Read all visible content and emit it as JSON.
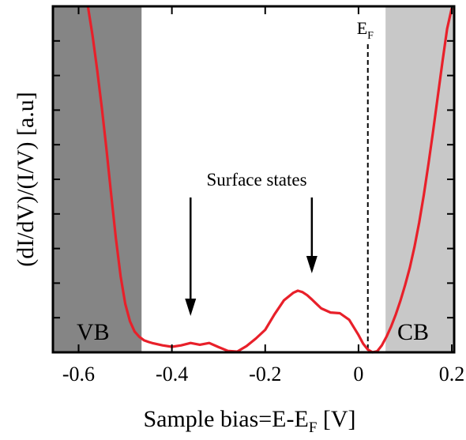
{
  "chart_data": {
    "type": "line",
    "title": "",
    "xlabel_main": "Sample bias=E-E",
    "xlabel_sub": "F",
    "xlabel_unit": " [V]",
    "ylabel": "(dI/dV)/(I/V) [a.u]",
    "xlim": [
      -0.655,
      0.205
    ],
    "ylim": [
      0,
      1
    ],
    "x_ticks": [
      {
        "value": -0.6,
        "label": "-0.6"
      },
      {
        "value": -0.4,
        "label": "-0.4"
      },
      {
        "value": -0.2,
        "label": "-0.2"
      },
      {
        "value": 0.0,
        "label": "0"
      },
      {
        "value": 0.2,
        "label": "0.2"
      }
    ],
    "grid": false,
    "series": [
      {
        "color": "#e8202a",
        "x": [
          -0.58,
          -0.57,
          -0.56,
          -0.55,
          -0.54,
          -0.53,
          -0.52,
          -0.51,
          -0.5,
          -0.49,
          -0.48,
          -0.47,
          -0.46,
          -0.45,
          -0.44,
          -0.42,
          -0.4,
          -0.38,
          -0.36,
          -0.34,
          -0.32,
          -0.3,
          -0.28,
          -0.26,
          -0.24,
          -0.22,
          -0.2,
          -0.18,
          -0.16,
          -0.14,
          -0.13,
          -0.12,
          -0.11,
          -0.1,
          -0.09,
          -0.08,
          -0.06,
          -0.04,
          -0.02,
          0.0,
          0.01,
          0.02,
          0.03,
          0.04,
          0.05,
          0.06,
          0.07,
          0.08,
          0.09,
          0.1,
          0.11,
          0.12,
          0.13,
          0.14,
          0.15,
          0.16,
          0.17,
          0.18,
          0.19,
          0.2
        ],
        "y": [
          1.0,
          0.915,
          0.815,
          0.705,
          0.585,
          0.455,
          0.33,
          0.22,
          0.14,
          0.09,
          0.06,
          0.045,
          0.035,
          0.03,
          0.026,
          0.02,
          0.016,
          0.02,
          0.027,
          0.022,
          0.027,
          0.015,
          0.004,
          0.002,
          0.018,
          0.04,
          0.065,
          0.11,
          0.15,
          0.172,
          0.178,
          0.174,
          0.165,
          0.153,
          0.14,
          0.127,
          0.115,
          0.113,
          0.094,
          0.05,
          0.025,
          0.008,
          0.0,
          0.003,
          0.02,
          0.045,
          0.075,
          0.11,
          0.15,
          0.195,
          0.245,
          0.305,
          0.375,
          0.455,
          0.545,
          0.64,
          0.74,
          0.84,
          0.935,
          0.995
        ]
      }
    ],
    "shaded_regions": [
      {
        "label": "VB",
        "from": -0.655,
        "to": -0.465,
        "color": "#858585"
      },
      {
        "label": "CB",
        "from": 0.058,
        "to": 0.205,
        "color": "#c8c8c8"
      }
    ],
    "fermi_line": {
      "x": 0.02,
      "label_main": "E",
      "label_sub": "F"
    },
    "annotation": {
      "text": "Surface states",
      "arrow_targets": [
        -0.36,
        -0.1
      ]
    }
  }
}
